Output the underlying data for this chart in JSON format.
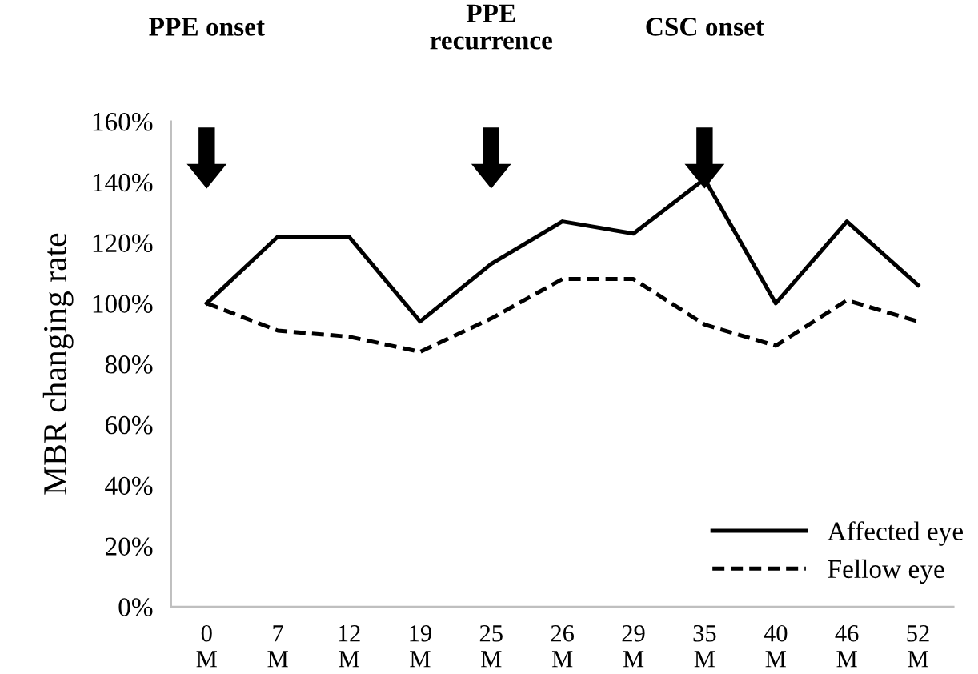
{
  "chart_data": {
    "type": "line",
    "ylabel": "MBR changing rate",
    "categories": [
      "0\nM",
      "7\nM",
      "12\nM",
      "19\nM",
      "25\nM",
      "26\nM",
      "29\nM",
      "35\nM",
      "40\nM",
      "46\nM",
      "52\nM"
    ],
    "series": [
      {
        "name": "Affected eye",
        "color": "#000000",
        "line_style": "solid",
        "values": [
          100,
          122,
          122,
          94,
          113,
          127,
          123,
          141,
          100,
          127,
          106
        ]
      },
      {
        "name": "Fellow eye",
        "color": "#000000",
        "line_style": "dashed",
        "values": [
          100,
          91,
          89,
          84,
          95,
          108,
          108,
          93,
          86,
          101,
          94
        ]
      }
    ],
    "ylim": [
      0,
      160
    ],
    "yticks": [
      {
        "value": 0,
        "label": "0%"
      },
      {
        "value": 20,
        "label": "20%"
      },
      {
        "value": 40,
        "label": "40%"
      },
      {
        "value": 60,
        "label": "60%"
      },
      {
        "value": 80,
        "label": "80%"
      },
      {
        "value": 100,
        "label": "100%"
      },
      {
        "value": 120,
        "label": "120%"
      },
      {
        "value": 140,
        "label": "140%"
      },
      {
        "value": 160,
        "label": "160%"
      }
    ],
    "grid": false,
    "legend": "bottom right",
    "marker": "none",
    "annotations": [
      "PPE onset",
      "PPE\nrecurrence",
      "CSC onset"
    ]
  }
}
